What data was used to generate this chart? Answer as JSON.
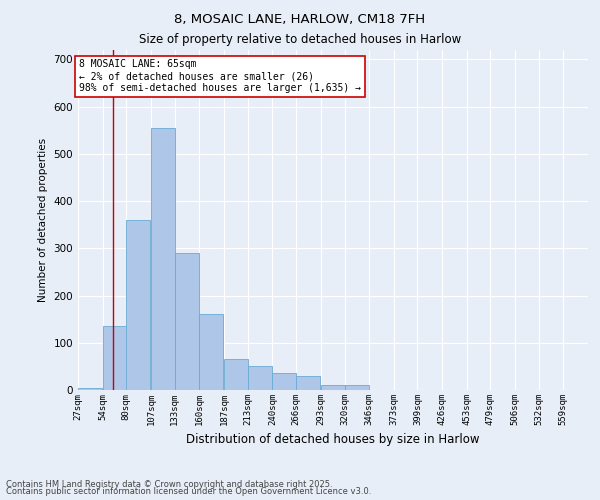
{
  "title1": "8, MOSAIC LANE, HARLOW, CM18 7FH",
  "title2": "Size of property relative to detached houses in Harlow",
  "xlabel": "Distribution of detached houses by size in Harlow",
  "ylabel": "Number of detached properties",
  "bins": [
    "27sqm",
    "54sqm",
    "80sqm",
    "107sqm",
    "133sqm",
    "160sqm",
    "187sqm",
    "213sqm",
    "240sqm",
    "266sqm",
    "293sqm",
    "320sqm",
    "346sqm",
    "373sqm",
    "399sqm",
    "426sqm",
    "453sqm",
    "479sqm",
    "506sqm",
    "532sqm",
    "559sqm"
  ],
  "bin_edges": [
    27,
    54,
    80,
    107,
    133,
    160,
    187,
    213,
    240,
    266,
    293,
    320,
    346,
    373,
    399,
    426,
    453,
    479,
    506,
    532,
    559
  ],
  "values": [
    5,
    135,
    360,
    555,
    290,
    160,
    65,
    50,
    35,
    30,
    10,
    10,
    0,
    0,
    0,
    0,
    0,
    0,
    0,
    0,
    0
  ],
  "bar_color": "#aec6e8",
  "bar_edge_color": "#6aabd2",
  "bg_color": "#e8eef7",
  "grid_color": "#ffffff",
  "vline_x": 65,
  "vline_color": "#cc0000",
  "annotation_line1": "8 MOSAIC LANE: 65sqm",
  "annotation_line2": "← 2% of detached houses are smaller (26)",
  "annotation_line3": "98% of semi-detached houses are larger (1,635) →",
  "annotation_box_color": "#ffffff",
  "annotation_box_edge": "#cc0000",
  "ylim": [
    0,
    720
  ],
  "yticks": [
    0,
    100,
    200,
    300,
    400,
    500,
    600,
    700
  ],
  "footer1": "Contains HM Land Registry data © Crown copyright and database right 2025.",
  "footer2": "Contains public sector information licensed under the Open Government Licence v3.0."
}
